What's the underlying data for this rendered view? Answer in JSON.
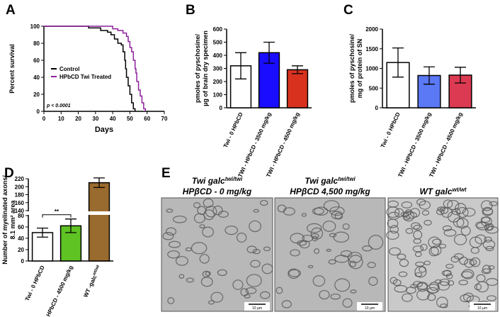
{
  "chart_data": [
    {
      "type": "line",
      "step": true,
      "panel": "A",
      "x_label": "Days",
      "y_label": [
        "Percent survival"
      ],
      "xlim": [
        0,
        70
      ],
      "xticks": [
        0,
        10,
        20,
        30,
        40,
        50,
        60,
        70
      ],
      "ylim": [
        0,
        100
      ],
      "yticks": [
        0,
        20,
        40,
        60,
        80,
        100
      ],
      "annotation": "p < 0.0001",
      "series": [
        {
          "name": "Control",
          "color": "#000000",
          "x": [
            0,
            22,
            26,
            33,
            37,
            39,
            41,
            43,
            45,
            46,
            47,
            47.5,
            48,
            49,
            50,
            51,
            52,
            53
          ],
          "values": [
            100,
            100,
            98,
            95,
            93,
            90,
            85,
            80,
            78,
            70,
            60,
            50,
            40,
            30,
            20,
            10,
            3,
            0
          ]
        },
        {
          "name": "HPbCD Twi Treated",
          "color": "#8e1f9c",
          "x": [
            0,
            28,
            40,
            43,
            46,
            48,
            49,
            50,
            51,
            52,
            53,
            53.5,
            54,
            55,
            56,
            57,
            58,
            59
          ],
          "values": [
            100,
            100,
            97,
            95,
            92,
            88,
            82,
            75,
            70,
            60,
            50,
            45,
            35,
            25,
            18,
            10,
            3,
            0
          ]
        }
      ]
    },
    {
      "type": "bar",
      "panel": "B",
      "y_label": [
        "pmoles of pyschosine/",
        "µg of brain dry specimen"
      ],
      "categories": [
        "Twi - 0 HPbCD",
        "TWI - HPbCD - 3500 mg/kg",
        "TWI - HPbCD - 4500 mg/kg"
      ],
      "values": [
        320,
        420,
        290
      ],
      "errors": [
        100,
        80,
        30
      ],
      "colors": [
        "#ffffff",
        "#1a0dff",
        "#d8321f"
      ],
      "ylim": [
        0,
        600
      ],
      "yticks": [
        0,
        100,
        200,
        300,
        400,
        500,
        600
      ]
    },
    {
      "type": "bar",
      "panel": "C",
      "y_label": [
        "pmoles of pyschosine/",
        "mg of protein of SN"
      ],
      "categories": [
        "Twi - 0 HPbCD",
        "TWI - HPbCD - 3500 mg/kg",
        "TWI - HPbCD - 4500 mg/kg"
      ],
      "values": [
        1150,
        820,
        830
      ],
      "errors": [
        370,
        220,
        200
      ],
      "colors": [
        "#ffffff",
        "#5b79f5",
        "#dc3a52"
      ],
      "ylim": [
        0,
        2000
      ],
      "yticks": [
        0,
        500,
        1000,
        1500,
        2000
      ]
    },
    {
      "type": "bar",
      "panel": "D",
      "y_label": [
        "Number of myelinated axons/",
        "8.1 mm² area"
      ],
      "categories": [
        "Twi - 0 HPbCD",
        "TWI - HPbCD - 4500 mg/kg",
        "WT -galc"
      ],
      "category_superscripts": [
        null,
        null,
        "wt/wt"
      ],
      "values": [
        50,
        62,
        210
      ],
      "errors": [
        8,
        12,
        12
      ],
      "colors": [
        "#ffffff",
        "#5fc324",
        "#9a6b2e"
      ],
      "ylim": [
        0,
        220
      ],
      "ybreak": [
        80,
        140
      ],
      "yticks": [
        0,
        20,
        40,
        60,
        80,
        140,
        160,
        180,
        200,
        220
      ],
      "annotation": "**"
    }
  ],
  "panel_e": {
    "label": "E",
    "images": [
      {
        "title": "Twi galc",
        "title_sup": "twi/twi",
        "subtitle": "HPβCD - 0 mg/kg",
        "scale_bar": "10 µm"
      },
      {
        "title": "Twi galc",
        "title_sup": "twi/twi",
        "subtitle": "HPβCD 4,500 mg/kg",
        "scale_bar": "10 µm"
      },
      {
        "title": "WT galc",
        "title_sup": "wt/wt",
        "subtitle": null,
        "scale_bar": "10 µm"
      }
    ]
  }
}
